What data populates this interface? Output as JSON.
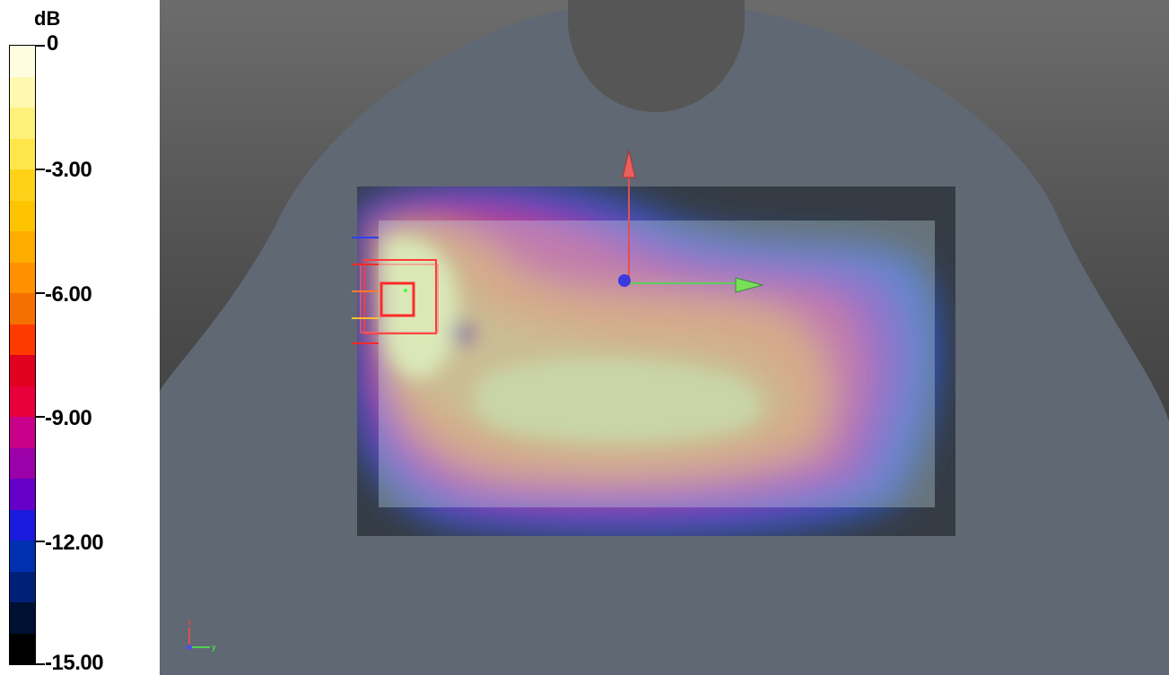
{
  "colorbar": {
    "unit": "dB",
    "labels": [
      "0",
      "-3.00",
      "-6.00",
      "-9.00",
      "-12.00",
      "-15.00"
    ],
    "segments": [
      "#fffde0",
      "#fff8b0",
      "#fff07a",
      "#ffe64a",
      "#ffd21a",
      "#ffc400",
      "#ffac00",
      "#ff9000",
      "#f47000",
      "#ff3a00",
      "#e00020",
      "#e8003a",
      "#c8008a",
      "#9c00a8",
      "#6600c8",
      "#1a1adc",
      "#0030b0",
      "#002078",
      "#001030",
      "#000000"
    ]
  },
  "viewport": {
    "background_top": "#6c6c6c",
    "background_bottom": "#2f2f2f",
    "phantom_color": "#606874",
    "axes_triad": {
      "x_label": "x",
      "y_label": "y"
    }
  },
  "icons": {
    "red_arrow": "up-arrow-icon",
    "green_arrow": "right-arrow-icon",
    "origin": "origin-dot-icon"
  }
}
